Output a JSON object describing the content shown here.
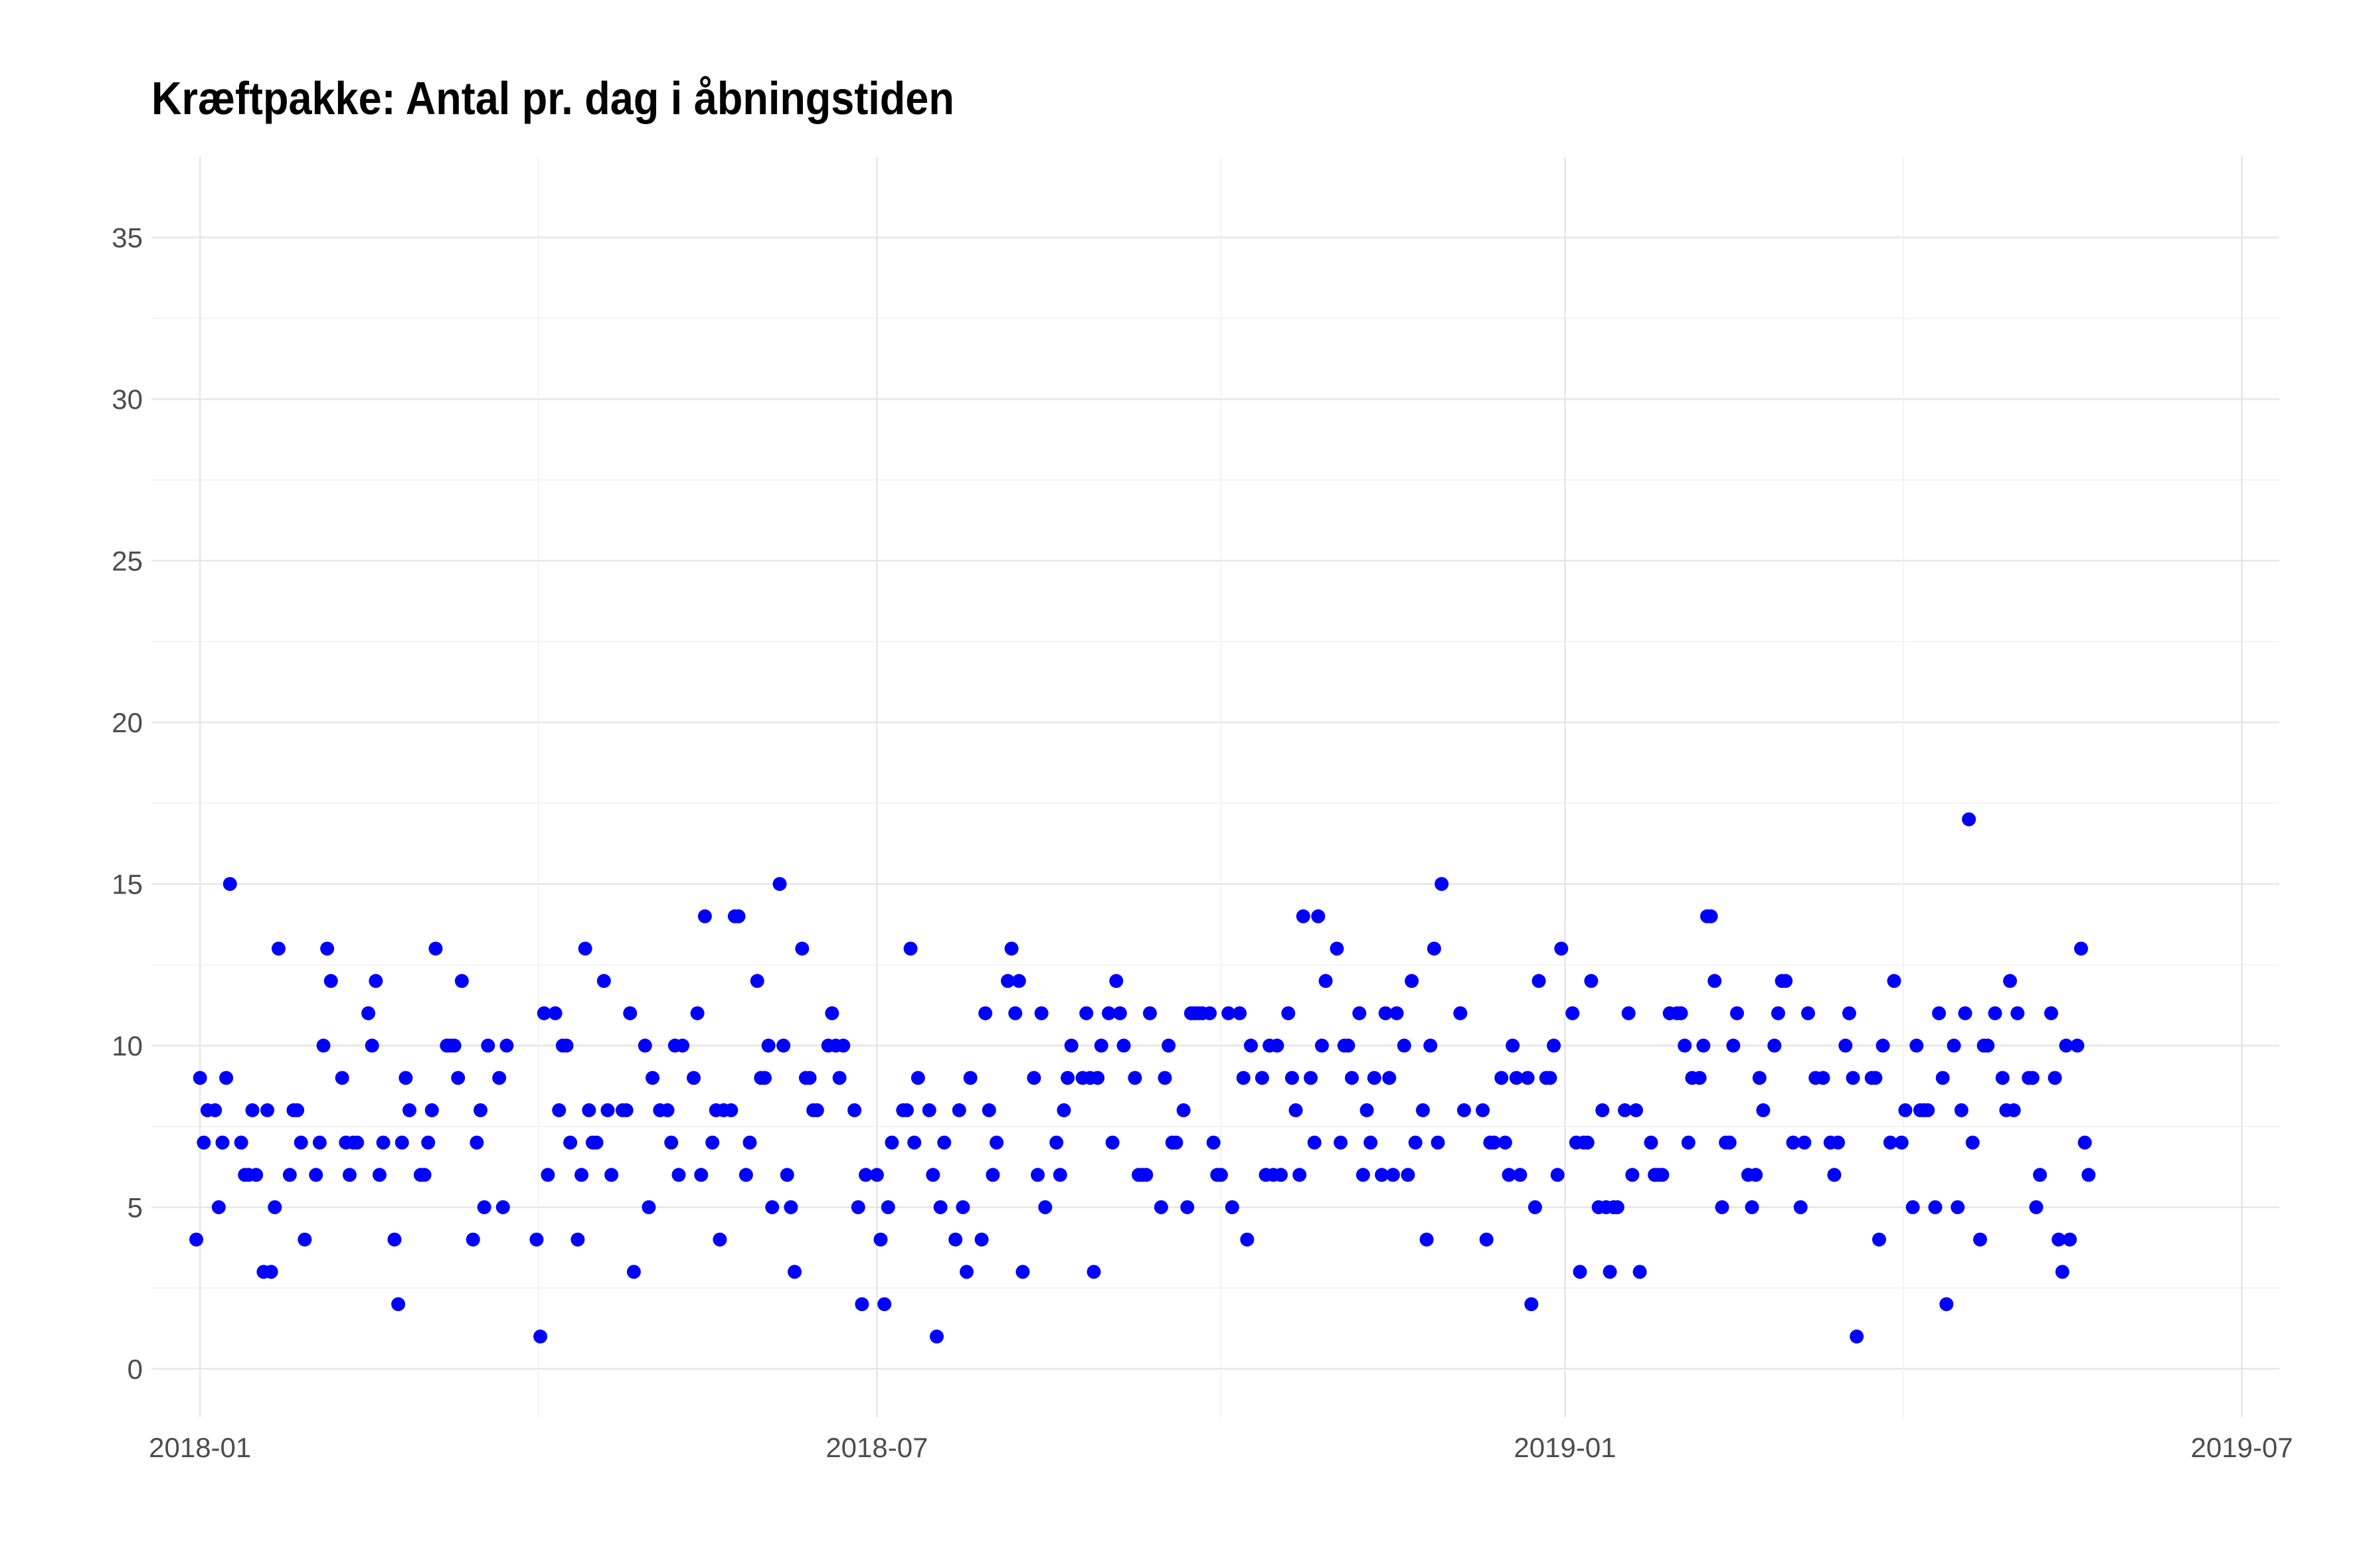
{
  "chart_data": {
    "type": "scatter",
    "title": "Kræftpakke: Antal pr. dag i åbningstiden",
    "xlabel": "",
    "ylabel": "",
    "x_axis": {
      "kind": "date",
      "range": [
        "2017-12-19",
        "2019-07-11"
      ],
      "ticks": [
        "2018-01",
        "2018-07",
        "2019-01",
        "2019-07"
      ]
    },
    "y_axis": {
      "range": [
        -1.5,
        37.5
      ],
      "ticks": [
        0,
        5,
        10,
        15,
        20,
        25,
        30,
        35
      ]
    },
    "grid": true,
    "point_color": "#0000ff",
    "points": [
      [
        "2017-12-31",
        4
      ],
      [
        "2018-01-01",
        9
      ],
      [
        "2018-01-02",
        7
      ],
      [
        "2018-01-03",
        8
      ],
      [
        "2018-01-05",
        8
      ],
      [
        "2018-01-06",
        5
      ],
      [
        "2018-01-07",
        7
      ],
      [
        "2018-01-08",
        9
      ],
      [
        "2018-01-09",
        15
      ],
      [
        "2018-01-12",
        7
      ],
      [
        "2018-01-13",
        6
      ],
      [
        "2018-01-14",
        6
      ],
      [
        "2018-01-15",
        8
      ],
      [
        "2018-01-16",
        6
      ],
      [
        "2018-01-18",
        3
      ],
      [
        "2018-01-19",
        8
      ],
      [
        "2018-01-20",
        3
      ],
      [
        "2018-01-21",
        5
      ],
      [
        "2018-01-22",
        13
      ],
      [
        "2018-01-25",
        6
      ],
      [
        "2018-01-26",
        8
      ],
      [
        "2018-01-27",
        8
      ],
      [
        "2018-01-28",
        7
      ],
      [
        "2018-01-29",
        4
      ],
      [
        "2018-02-01",
        6
      ],
      [
        "2018-02-02",
        7
      ],
      [
        "2018-02-03",
        10
      ],
      [
        "2018-02-04",
        13
      ],
      [
        "2018-02-05",
        12
      ],
      [
        "2018-02-08",
        9
      ],
      [
        "2018-02-09",
        7
      ],
      [
        "2018-02-10",
        6
      ],
      [
        "2018-02-11",
        7
      ],
      [
        "2018-02-12",
        7
      ],
      [
        "2018-02-15",
        11
      ],
      [
        "2018-02-16",
        10
      ],
      [
        "2018-02-17",
        12
      ],
      [
        "2018-02-18",
        6
      ],
      [
        "2018-02-19",
        7
      ],
      [
        "2018-02-22",
        4
      ],
      [
        "2018-02-23",
        2
      ],
      [
        "2018-02-24",
        7
      ],
      [
        "2018-02-25",
        9
      ],
      [
        "2018-02-26",
        8
      ],
      [
        "2018-03-01",
        6
      ],
      [
        "2018-03-02",
        6
      ],
      [
        "2018-03-03",
        7
      ],
      [
        "2018-03-04",
        8
      ],
      [
        "2018-03-05",
        13
      ],
      [
        "2018-03-08",
        10
      ],
      [
        "2018-03-09",
        10
      ],
      [
        "2018-03-10",
        10
      ],
      [
        "2018-03-11",
        9
      ],
      [
        "2018-03-12",
        12
      ],
      [
        "2018-03-15",
        4
      ],
      [
        "2018-03-16",
        7
      ],
      [
        "2018-03-17",
        8
      ],
      [
        "2018-03-18",
        5
      ],
      [
        "2018-03-19",
        10
      ],
      [
        "2018-03-22",
        9
      ],
      [
        "2018-03-23",
        5
      ],
      [
        "2018-03-24",
        10
      ],
      [
        "2018-04-01",
        4
      ],
      [
        "2018-04-02",
        1
      ],
      [
        "2018-04-03",
        11
      ],
      [
        "2018-04-04",
        6
      ],
      [
        "2018-04-06",
        11
      ],
      [
        "2018-04-07",
        8
      ],
      [
        "2018-04-08",
        10
      ],
      [
        "2018-04-09",
        10
      ],
      [
        "2018-04-10",
        7
      ],
      [
        "2018-04-12",
        4
      ],
      [
        "2018-04-13",
        6
      ],
      [
        "2018-04-14",
        13
      ],
      [
        "2018-04-15",
        8
      ],
      [
        "2018-04-16",
        7
      ],
      [
        "2018-04-17",
        7
      ],
      [
        "2018-04-19",
        12
      ],
      [
        "2018-04-20",
        8
      ],
      [
        "2018-04-21",
        6
      ],
      [
        "2018-04-24",
        8
      ],
      [
        "2018-04-25",
        8
      ],
      [
        "2018-04-26",
        11
      ],
      [
        "2018-04-27",
        3
      ],
      [
        "2018-04-30",
        10
      ],
      [
        "2018-05-01",
        5
      ],
      [
        "2018-05-02",
        9
      ],
      [
        "2018-05-04",
        8
      ],
      [
        "2018-05-06",
        8
      ],
      [
        "2018-05-07",
        7
      ],
      [
        "2018-05-08",
        10
      ],
      [
        "2018-05-09",
        6
      ],
      [
        "2018-05-10",
        10
      ],
      [
        "2018-05-13",
        9
      ],
      [
        "2018-05-14",
        11
      ],
      [
        "2018-05-15",
        6
      ],
      [
        "2018-05-16",
        14
      ],
      [
        "2018-05-18",
        7
      ],
      [
        "2018-05-19",
        8
      ],
      [
        "2018-05-20",
        4
      ],
      [
        "2018-05-21",
        8
      ],
      [
        "2018-05-23",
        8
      ],
      [
        "2018-05-24",
        14
      ],
      [
        "2018-05-25",
        14
      ],
      [
        "2018-05-27",
        6
      ],
      [
        "2018-05-28",
        7
      ],
      [
        "2018-05-30",
        12
      ],
      [
        "2018-05-31",
        9
      ],
      [
        "2018-06-01",
        9
      ],
      [
        "2018-06-02",
        10
      ],
      [
        "2018-06-03",
        5
      ],
      [
        "2018-06-05",
        15
      ],
      [
        "2018-06-06",
        10
      ],
      [
        "2018-06-07",
        6
      ],
      [
        "2018-06-08",
        5
      ],
      [
        "2018-06-09",
        3
      ],
      [
        "2018-06-11",
        13
      ],
      [
        "2018-06-12",
        9
      ],
      [
        "2018-06-13",
        9
      ],
      [
        "2018-06-14",
        8
      ],
      [
        "2018-06-15",
        8
      ],
      [
        "2018-06-18",
        10
      ],
      [
        "2018-06-19",
        11
      ],
      [
        "2018-06-20",
        10
      ],
      [
        "2018-06-21",
        9
      ],
      [
        "2018-06-22",
        10
      ],
      [
        "2018-06-25",
        8
      ],
      [
        "2018-06-26",
        5
      ],
      [
        "2018-06-27",
        2
      ],
      [
        "2018-06-28",
        6
      ],
      [
        "2018-07-01",
        6
      ],
      [
        "2018-07-02",
        4
      ],
      [
        "2018-07-03",
        2
      ],
      [
        "2018-07-04",
        5
      ],
      [
        "2018-07-05",
        7
      ],
      [
        "2018-07-08",
        8
      ],
      [
        "2018-07-09",
        8
      ],
      [
        "2018-07-10",
        13
      ],
      [
        "2018-07-11",
        7
      ],
      [
        "2018-07-12",
        9
      ],
      [
        "2018-07-15",
        8
      ],
      [
        "2018-07-16",
        6
      ],
      [
        "2018-07-17",
        1
      ],
      [
        "2018-07-18",
        5
      ],
      [
        "2018-07-19",
        7
      ],
      [
        "2018-07-22",
        4
      ],
      [
        "2018-07-23",
        8
      ],
      [
        "2018-07-24",
        5
      ],
      [
        "2018-07-25",
        3
      ],
      [
        "2018-07-26",
        9
      ],
      [
        "2018-07-29",
        4
      ],
      [
        "2018-07-30",
        11
      ],
      [
        "2018-07-31",
        8
      ],
      [
        "2018-08-01",
        6
      ],
      [
        "2018-08-02",
        7
      ],
      [
        "2018-08-05",
        12
      ],
      [
        "2018-08-06",
        13
      ],
      [
        "2018-08-07",
        11
      ],
      [
        "2018-08-08",
        12
      ],
      [
        "2018-08-09",
        3
      ],
      [
        "2018-08-12",
        9
      ],
      [
        "2018-08-13",
        6
      ],
      [
        "2018-08-14",
        11
      ],
      [
        "2018-08-15",
        5
      ],
      [
        "2018-08-18",
        7
      ],
      [
        "2018-08-19",
        6
      ],
      [
        "2018-08-20",
        8
      ],
      [
        "2018-08-21",
        9
      ],
      [
        "2018-08-22",
        10
      ],
      [
        "2018-08-25",
        9
      ],
      [
        "2018-08-26",
        11
      ],
      [
        "2018-08-27",
        9
      ],
      [
        "2018-08-28",
        3
      ],
      [
        "2018-08-29",
        9
      ],
      [
        "2018-08-30",
        10
      ],
      [
        "2018-09-01",
        11
      ],
      [
        "2018-09-02",
        7
      ],
      [
        "2018-09-03",
        12
      ],
      [
        "2018-09-04",
        11
      ],
      [
        "2018-09-05",
        10
      ],
      [
        "2018-09-08",
        9
      ],
      [
        "2018-09-09",
        6
      ],
      [
        "2018-09-10",
        6
      ],
      [
        "2018-09-11",
        6
      ],
      [
        "2018-09-12",
        11
      ],
      [
        "2018-09-15",
        5
      ],
      [
        "2018-09-16",
        9
      ],
      [
        "2018-09-17",
        10
      ],
      [
        "2018-09-18",
        7
      ],
      [
        "2018-09-19",
        7
      ],
      [
        "2018-09-21",
        8
      ],
      [
        "2018-09-22",
        5
      ],
      [
        "2018-09-23",
        11
      ],
      [
        "2018-09-24",
        11
      ],
      [
        "2018-09-25",
        11
      ],
      [
        "2018-09-26",
        11
      ],
      [
        "2018-09-28",
        11
      ],
      [
        "2018-09-29",
        7
      ],
      [
        "2018-09-30",
        6
      ],
      [
        "2018-10-01",
        6
      ],
      [
        "2018-10-03",
        11
      ],
      [
        "2018-10-04",
        5
      ],
      [
        "2018-10-06",
        11
      ],
      [
        "2018-10-07",
        9
      ],
      [
        "2018-10-08",
        4
      ],
      [
        "2018-10-09",
        10
      ],
      [
        "2018-10-12",
        9
      ],
      [
        "2018-10-13",
        6
      ],
      [
        "2018-10-14",
        10
      ],
      [
        "2018-10-15",
        6
      ],
      [
        "2018-10-16",
        10
      ],
      [
        "2018-10-17",
        6
      ],
      [
        "2018-10-19",
        11
      ],
      [
        "2018-10-20",
        9
      ],
      [
        "2018-10-21",
        8
      ],
      [
        "2018-10-22",
        6
      ],
      [
        "2018-10-23",
        14
      ],
      [
        "2018-10-25",
        9
      ],
      [
        "2018-10-26",
        7
      ],
      [
        "2018-10-27",
        14
      ],
      [
        "2018-10-28",
        10
      ],
      [
        "2018-10-29",
        12
      ],
      [
        "2018-11-01",
        13
      ],
      [
        "2018-11-02",
        7
      ],
      [
        "2018-11-03",
        10
      ],
      [
        "2018-11-04",
        10
      ],
      [
        "2018-11-05",
        9
      ],
      [
        "2018-11-07",
        11
      ],
      [
        "2018-11-08",
        6
      ],
      [
        "2018-11-09",
        8
      ],
      [
        "2018-11-10",
        7
      ],
      [
        "2018-11-11",
        9
      ],
      [
        "2018-11-13",
        6
      ],
      [
        "2018-11-14",
        11
      ],
      [
        "2018-11-15",
        9
      ],
      [
        "2018-11-16",
        6
      ],
      [
        "2018-11-17",
        11
      ],
      [
        "2018-11-19",
        10
      ],
      [
        "2018-11-20",
        6
      ],
      [
        "2018-11-21",
        12
      ],
      [
        "2018-11-22",
        7
      ],
      [
        "2018-11-24",
        8
      ],
      [
        "2018-11-25",
        4
      ],
      [
        "2018-11-26",
        10
      ],
      [
        "2018-11-27",
        13
      ],
      [
        "2018-11-28",
        7
      ],
      [
        "2018-11-29",
        15
      ],
      [
        "2018-12-04",
        11
      ],
      [
        "2018-12-05",
        8
      ],
      [
        "2018-12-10",
        8
      ],
      [
        "2018-12-11",
        4
      ],
      [
        "2018-12-12",
        7
      ],
      [
        "2018-12-13",
        7
      ],
      [
        "2018-12-15",
        9
      ],
      [
        "2018-12-16",
        7
      ],
      [
        "2018-12-17",
        6
      ],
      [
        "2018-12-18",
        10
      ],
      [
        "2018-12-19",
        9
      ],
      [
        "2018-12-20",
        6
      ],
      [
        "2018-12-22",
        9
      ],
      [
        "2018-12-23",
        2
      ],
      [
        "2018-12-24",
        5
      ],
      [
        "2018-12-25",
        12
      ],
      [
        "2018-12-27",
        9
      ],
      [
        "2018-12-28",
        9
      ],
      [
        "2018-12-29",
        10
      ],
      [
        "2018-12-30",
        6
      ],
      [
        "2018-12-31",
        13
      ],
      [
        "2019-01-03",
        11
      ],
      [
        "2019-01-04",
        7
      ],
      [
        "2019-01-05",
        3
      ],
      [
        "2019-01-06",
        7
      ],
      [
        "2019-01-07",
        7
      ],
      [
        "2019-01-08",
        12
      ],
      [
        "2019-01-10",
        5
      ],
      [
        "2019-01-11",
        8
      ],
      [
        "2019-01-12",
        5
      ],
      [
        "2019-01-13",
        3
      ],
      [
        "2019-01-14",
        5
      ],
      [
        "2019-01-15",
        5
      ],
      [
        "2019-01-17",
        8
      ],
      [
        "2019-01-18",
        11
      ],
      [
        "2019-01-19",
        6
      ],
      [
        "2019-01-20",
        8
      ],
      [
        "2019-01-21",
        3
      ],
      [
        "2019-01-24",
        7
      ],
      [
        "2019-01-25",
        6
      ],
      [
        "2019-01-26",
        6
      ],
      [
        "2019-01-27",
        6
      ],
      [
        "2019-01-29",
        11
      ],
      [
        "2019-01-31",
        11
      ],
      [
        "2019-02-01",
        11
      ],
      [
        "2019-02-02",
        10
      ],
      [
        "2019-02-03",
        7
      ],
      [
        "2019-02-04",
        9
      ],
      [
        "2019-02-06",
        9
      ],
      [
        "2019-02-07",
        10
      ],
      [
        "2019-02-08",
        14
      ],
      [
        "2019-02-09",
        14
      ],
      [
        "2019-02-10",
        12
      ],
      [
        "2019-02-12",
        5
      ],
      [
        "2019-02-13",
        7
      ],
      [
        "2019-02-14",
        7
      ],
      [
        "2019-02-15",
        10
      ],
      [
        "2019-02-16",
        11
      ],
      [
        "2019-02-19",
        6
      ],
      [
        "2019-02-20",
        5
      ],
      [
        "2019-02-21",
        6
      ],
      [
        "2019-02-22",
        9
      ],
      [
        "2019-02-23",
        8
      ],
      [
        "2019-02-26",
        10
      ],
      [
        "2019-02-27",
        11
      ],
      [
        "2019-02-28",
        12
      ],
      [
        "2019-03-01",
        12
      ],
      [
        "2019-03-03",
        7
      ],
      [
        "2019-03-05",
        5
      ],
      [
        "2019-03-06",
        7
      ],
      [
        "2019-03-07",
        11
      ],
      [
        "2019-03-09",
        9
      ],
      [
        "2019-03-11",
        9
      ],
      [
        "2019-03-13",
        7
      ],
      [
        "2019-03-14",
        6
      ],
      [
        "2019-03-15",
        7
      ],
      [
        "2019-03-17",
        10
      ],
      [
        "2019-03-18",
        11
      ],
      [
        "2019-03-19",
        9
      ],
      [
        "2019-03-20",
        1
      ],
      [
        "2019-03-24",
        9
      ],
      [
        "2019-03-25",
        9
      ],
      [
        "2019-03-26",
        4
      ],
      [
        "2019-03-27",
        10
      ],
      [
        "2019-03-29",
        7
      ],
      [
        "2019-03-30",
        12
      ],
      [
        "2019-04-01",
        7
      ],
      [
        "2019-04-02",
        8
      ],
      [
        "2019-04-04",
        5
      ],
      [
        "2019-04-05",
        10
      ],
      [
        "2019-04-06",
        8
      ],
      [
        "2019-04-07",
        8
      ],
      [
        "2019-04-08",
        8
      ],
      [
        "2019-04-10",
        5
      ],
      [
        "2019-04-11",
        11
      ],
      [
        "2019-04-12",
        9
      ],
      [
        "2019-04-13",
        2
      ],
      [
        "2019-04-15",
        10
      ],
      [
        "2019-04-16",
        5
      ],
      [
        "2019-04-17",
        8
      ],
      [
        "2019-04-18",
        11
      ],
      [
        "2019-04-19",
        17
      ],
      [
        "2019-04-20",
        7
      ],
      [
        "2019-04-22",
        4
      ],
      [
        "2019-04-23",
        10
      ],
      [
        "2019-04-24",
        10
      ],
      [
        "2019-04-26",
        11
      ],
      [
        "2019-04-28",
        9
      ],
      [
        "2019-04-29",
        8
      ],
      [
        "2019-04-30",
        12
      ],
      [
        "2019-05-01",
        8
      ],
      [
        "2019-05-02",
        11
      ],
      [
        "2019-05-05",
        9
      ],
      [
        "2019-05-06",
        9
      ],
      [
        "2019-05-07",
        5
      ],
      [
        "2019-05-08",
        6
      ],
      [
        "2019-05-11",
        11
      ],
      [
        "2019-05-12",
        9
      ],
      [
        "2019-05-13",
        4
      ],
      [
        "2019-05-14",
        3
      ],
      [
        "2019-05-15",
        10
      ],
      [
        "2019-05-16",
        4
      ],
      [
        "2019-05-18",
        10
      ],
      [
        "2019-05-19",
        13
      ],
      [
        "2019-05-20",
        7
      ],
      [
        "2019-05-21",
        6
      ]
    ]
  }
}
